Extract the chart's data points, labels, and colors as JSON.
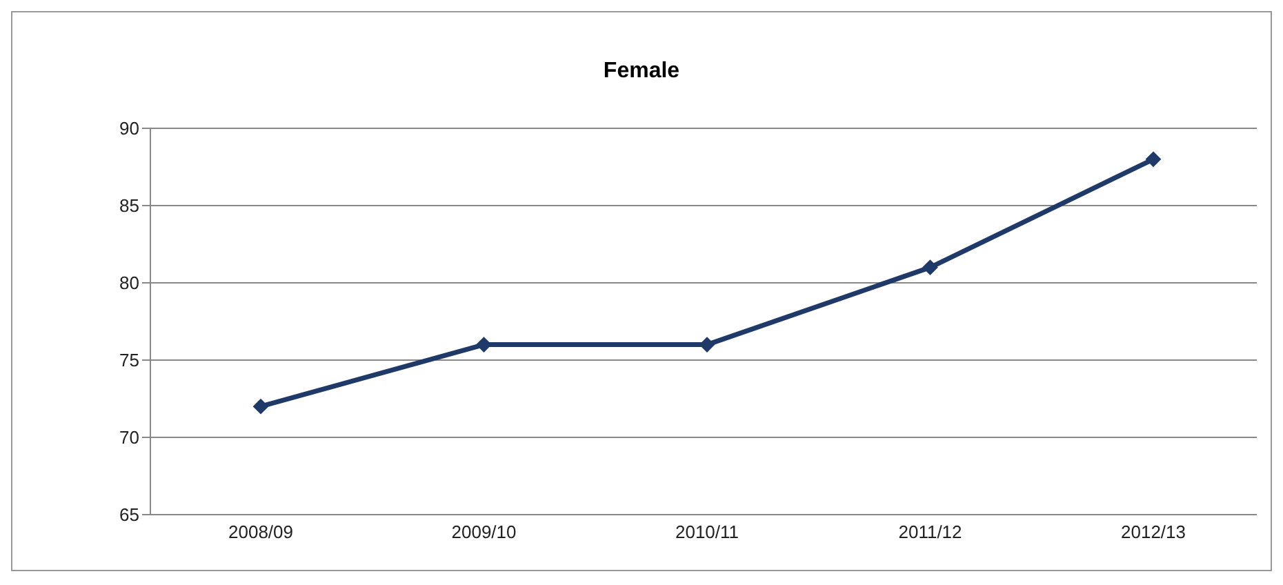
{
  "chart_data": {
    "type": "line",
    "title": "Female",
    "categories": [
      "2008/09",
      "2009/10",
      "2010/11",
      "2011/12",
      "2012/13"
    ],
    "series": [
      {
        "color": "#1f3a68",
        "values": [
          72,
          76,
          76,
          81,
          88
        ]
      }
    ],
    "ylim": [
      65,
      90
    ],
    "yticks": [
      65,
      70,
      75,
      80,
      85,
      90
    ],
    "grid": "y",
    "marker": "diamond",
    "line_style": "solid"
  }
}
